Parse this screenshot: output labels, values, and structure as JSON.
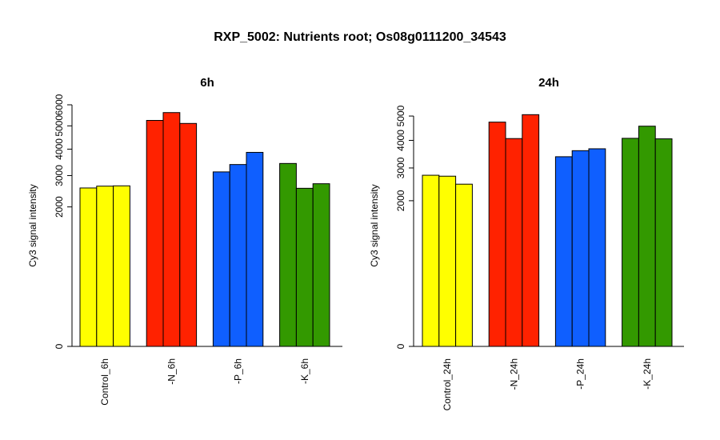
{
  "title": "RXP_5002: Nutrients root; Os08g0111200_34543",
  "chart_data": [
    {
      "type": "bar",
      "title": "6h",
      "ylabel": "Cy3 signal intensity",
      "xlabel": "",
      "yscale": "sqrt",
      "ylim": [
        0,
        6000
      ],
      "yticks": [
        0,
        2000,
        3000,
        4000,
        5000,
        6000
      ],
      "grid": false,
      "groups": [
        {
          "label": "Control_6h",
          "color": "#ffff00",
          "values": [
            2580,
            2640,
            2650
          ]
        },
        {
          "label": "-N_6h",
          "color": "#ff2200",
          "values": [
            5250,
            5620,
            5110
          ]
        },
        {
          "label": "-P_6h",
          "color": "#0f5fff",
          "values": [
            3130,
            3400,
            3870
          ]
        },
        {
          "label": "-K_6h",
          "color": "#339900",
          "values": [
            3440,
            2570,
            2720
          ]
        }
      ]
    },
    {
      "type": "bar",
      "title": "24h",
      "ylabel": "Cy3 signal intensity",
      "xlabel": "",
      "yscale": "sqrt",
      "ylim": [
        0,
        5500
      ],
      "yticks": [
        0,
        2000,
        3000,
        4000,
        5000
      ],
      "grid": false,
      "groups": [
        {
          "label": "Control_24h",
          "color": "#ffff00",
          "values": [
            2760,
            2730,
            2480
          ]
        },
        {
          "label": "-N_24h",
          "color": "#ff2200",
          "values": [
            4740,
            4070,
            5060
          ]
        },
        {
          "label": "-P_24h",
          "color": "#0f5fff",
          "values": [
            3390,
            3610,
            3680
          ]
        },
        {
          "label": "-K_24h",
          "color": "#339900",
          "values": [
            4080,
            4570,
            4060
          ]
        }
      ]
    }
  ]
}
